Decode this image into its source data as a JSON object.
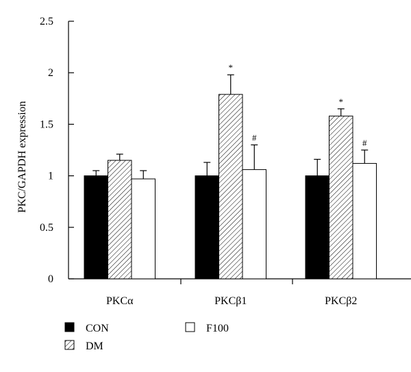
{
  "chart_data": {
    "type": "bar",
    "title": "",
    "xlabel": "",
    "ylabel": "PKC/GAPDH expression",
    "ylim": [
      0,
      2.5
    ],
    "yticks": [
      "0",
      "0.5",
      "1",
      "1.5",
      "2",
      "2.5"
    ],
    "ytick_values": [
      0,
      0.5,
      1,
      1.5,
      2,
      2.5
    ],
    "categories": [
      "PKCα",
      "PKCβ1",
      "PKCβ2"
    ],
    "series": [
      {
        "name": "CON",
        "fill": "solid",
        "color": "#000000",
        "values": [
          1.0,
          1.0,
          1.0
        ],
        "errors": [
          0.05,
          0.13,
          0.16
        ],
        "annotations": [
          "",
          "",
          ""
        ]
      },
      {
        "name": "DM",
        "fill": "hatched",
        "color": "#000000",
        "values": [
          1.15,
          1.79,
          1.58
        ],
        "errors": [
          0.06,
          0.19,
          0.07
        ],
        "annotations": [
          "",
          "*",
          "*"
        ]
      },
      {
        "name": "F100",
        "fill": "open",
        "color": "#ffffff",
        "values": [
          0.97,
          1.06,
          1.12
        ],
        "errors": [
          0.08,
          0.24,
          0.13
        ],
        "annotations": [
          "",
          "#",
          "#"
        ]
      }
    ],
    "legend": {
      "placement": "bottom"
    },
    "grid": false
  }
}
